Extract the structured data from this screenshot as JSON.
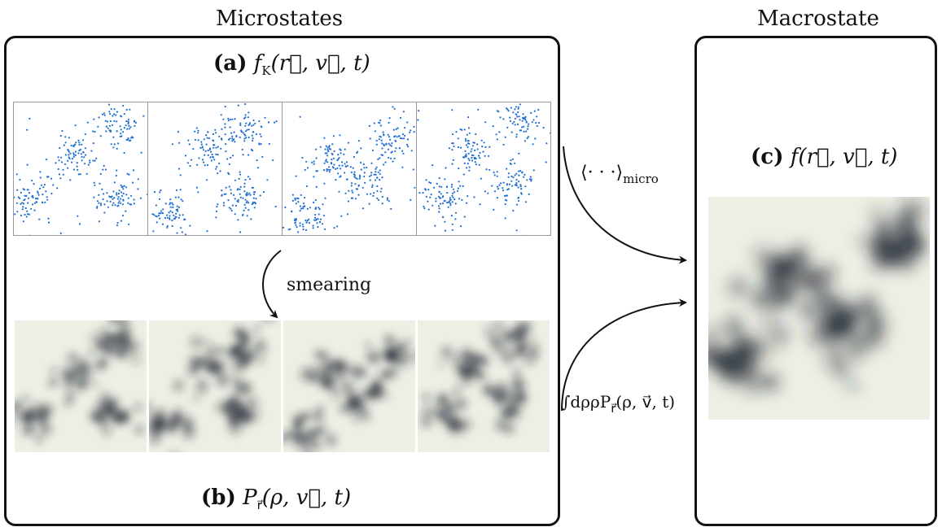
{
  "headers": {
    "micro": "Microstates",
    "macro": "Macrostate"
  },
  "labels": {
    "a_tag": "(a)",
    "a_expr": "f",
    "a_sub": "K",
    "a_args": "(r⃗, v⃗, t)",
    "b_tag": "(b)",
    "b_expr": "P",
    "b_sub": "r⃗",
    "b_args": "(ρ, v⃗, t)",
    "c_tag": "(c)",
    "c_expr": "f(r⃗, v⃗, t)"
  },
  "arrows": {
    "smearing": "smearing",
    "micro_avg": "⟨· · ·⟩",
    "micro_avg_sub": "micro",
    "integral": "∫dρρP",
    "integral_sub": "r⃗",
    "integral_args": "(ρ, v⃗, t)"
  },
  "colors": {
    "dots": "#1f6fd1",
    "ink": "#1c2430",
    "blur_bg": "#eeeee4"
  },
  "microstates": [
    {
      "clusters": [
        [
          0.12,
          0.72
        ],
        [
          0.45,
          0.4
        ],
        [
          0.78,
          0.18
        ],
        [
          0.75,
          0.72
        ]
      ]
    },
    {
      "clusters": [
        [
          0.15,
          0.82
        ],
        [
          0.45,
          0.35
        ],
        [
          0.72,
          0.2
        ],
        [
          0.7,
          0.7
        ]
      ]
    },
    {
      "clusters": [
        [
          0.18,
          0.85
        ],
        [
          0.35,
          0.42
        ],
        [
          0.6,
          0.6
        ],
        [
          0.82,
          0.25
        ]
      ]
    },
    {
      "clusters": [
        [
          0.2,
          0.72
        ],
        [
          0.38,
          0.35
        ],
        [
          0.7,
          0.6
        ],
        [
          0.75,
          0.15
        ]
      ]
    }
  ],
  "macrostate": {
    "clusters": [
      [
        0.15,
        0.73
      ],
      [
        0.36,
        0.35
      ],
      [
        0.6,
        0.58
      ],
      [
        0.83,
        0.2
      ]
    ]
  }
}
